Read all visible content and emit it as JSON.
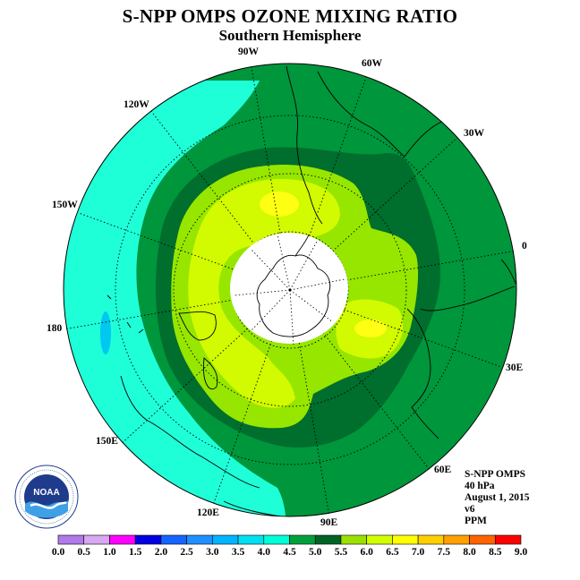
{
  "title": "S-NPP OMPS OZONE MIXING RATIO",
  "subtitle": "Southern Hemisphere",
  "logo_text": "NOAA",
  "info": {
    "instrument": "S-NPP OMPS",
    "level": "40 hPa",
    "date": "August 1, 2015",
    "version": "v6",
    "units": "PPM"
  },
  "longitude_labels": [
    "90W",
    "60W",
    "30W",
    "0",
    "30E",
    "60E",
    "90E",
    "120E",
    "150E",
    "180",
    "150W",
    "120W"
  ],
  "colorbar": {
    "ticks": [
      "0.0",
      "0.5",
      "1.0",
      "1.5",
      "2.0",
      "2.5",
      "3.0",
      "3.5",
      "4.0",
      "4.5",
      "5.0",
      "5.5",
      "6.0",
      "6.5",
      "7.0",
      "7.5",
      "8.0",
      "8.5",
      "9.0"
    ],
    "colors": [
      "#b07ae8",
      "#d8a8f0",
      "#ff00ff",
      "#0000e0",
      "#1464ff",
      "#1e90ff",
      "#00b4ff",
      "#00e0f0",
      "#00ffd8",
      "#00a03c",
      "#006428",
      "#9be000",
      "#d2ff00",
      "#ffff00",
      "#ffd000",
      "#ffa000",
      "#ff6400",
      "#ff0000",
      "#8c5a3c"
    ]
  },
  "map_colors": {
    "ocean_outer": "#1effd8",
    "band_45": "#00963c",
    "band_50": "#006e2d",
    "band_55": "#96e600",
    "band_60": "#d2fa00",
    "band_65": "#ffff14",
    "band_35": "#00d2f0",
    "no_data": "#ffffff"
  }
}
